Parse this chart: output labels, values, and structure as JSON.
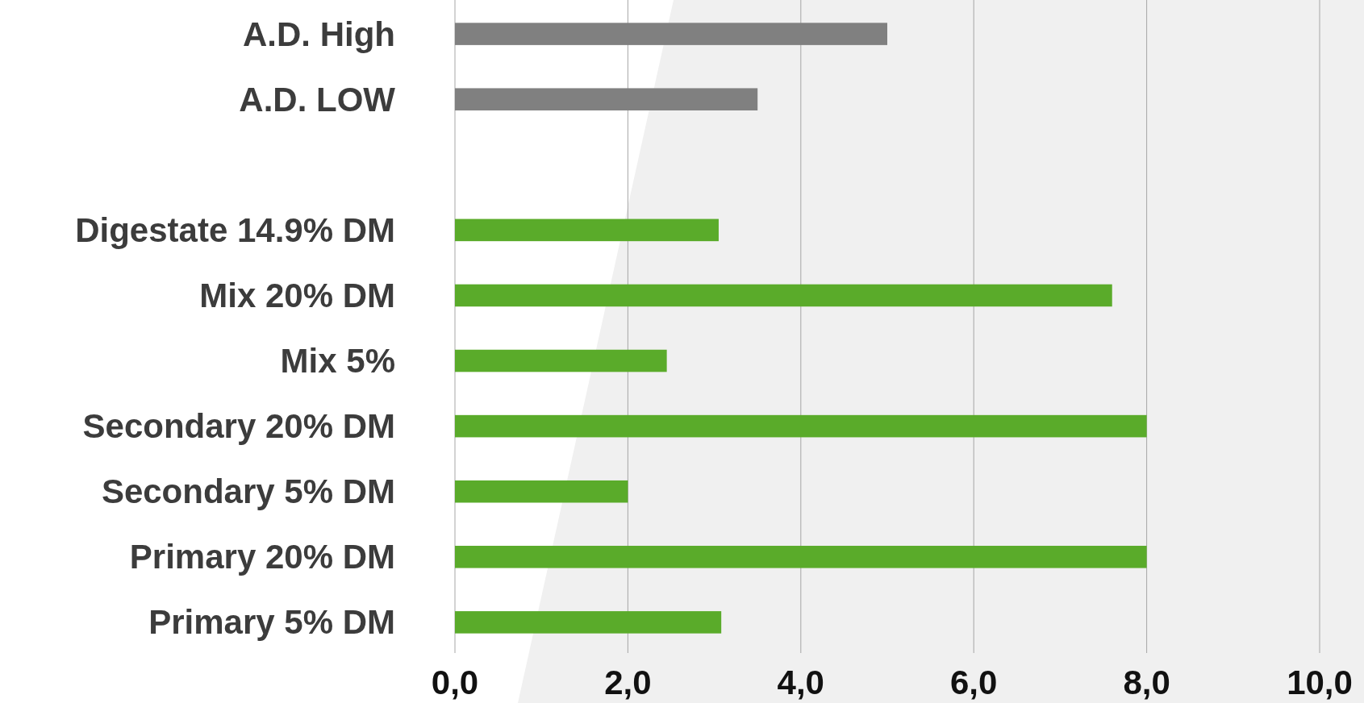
{
  "chart_data": {
    "type": "bar",
    "orientation": "horizontal",
    "categories": [
      "A.D. High",
      "A.D. LOW",
      null,
      "Digestate 14.9% DM",
      "Mix 20% DM",
      "Mix 5%",
      "Secondary 20% DM",
      "Secondary 5% DM",
      "Primary 20% DM",
      "Primary 5% DM"
    ],
    "values": [
      5.0,
      3.5,
      null,
      3.05,
      7.6,
      2.45,
      8.0,
      2.0,
      8.0,
      3.08
    ],
    "colors": [
      "#808080",
      "#808080",
      null,
      "#5aab2a",
      "#5aab2a",
      "#5aab2a",
      "#5aab2a",
      "#5aab2a",
      "#5aab2a",
      "#5aab2a"
    ],
    "xlim": [
      0,
      10
    ],
    "xticks": [
      {
        "value": 0,
        "label": "0,0"
      },
      {
        "value": 2,
        "label": "2,0"
      },
      {
        "value": 4,
        "label": "4,0"
      },
      {
        "value": 6,
        "label": "6,0"
      },
      {
        "value": 8,
        "label": "8,0"
      },
      {
        "value": 10,
        "label": "10,0"
      }
    ],
    "grid": "x"
  }
}
